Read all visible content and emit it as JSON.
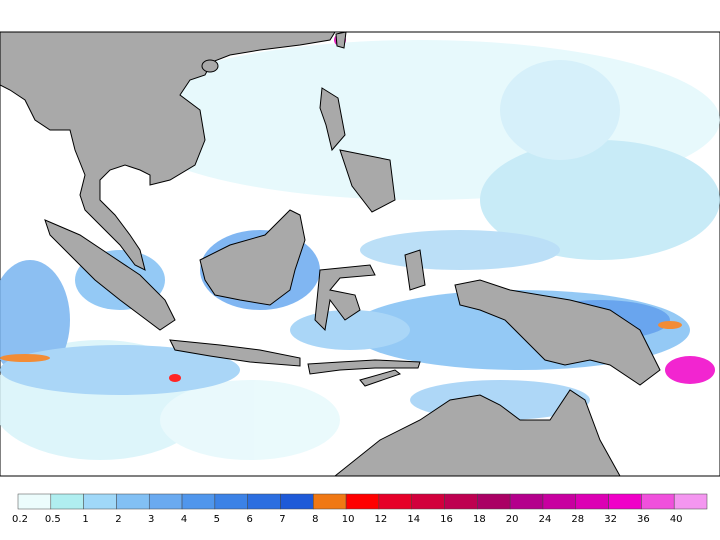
{
  "colorbar": {
    "labels": [
      0.2,
      0.5,
      1,
      2,
      3,
      4,
      5,
      6,
      7,
      8,
      10,
      12,
      14,
      16,
      18,
      20,
      24,
      28,
      32,
      36,
      40
    ],
    "colors": [
      "#ecfcfc",
      "#b0eef0",
      "#a0d8f8",
      "#82c0f4",
      "#6aaaf0",
      "#5096ec",
      "#3c82e6",
      "#2c6ee0",
      "#1e5ad8",
      "#f07814",
      "#ff0000",
      "#e60028",
      "#d2003c",
      "#be0050",
      "#aa0064",
      "#b4008c",
      "#c800a0",
      "#dc00b4",
      "#f000c8",
      "#f050dc",
      "#f496f0"
    ]
  }
}
